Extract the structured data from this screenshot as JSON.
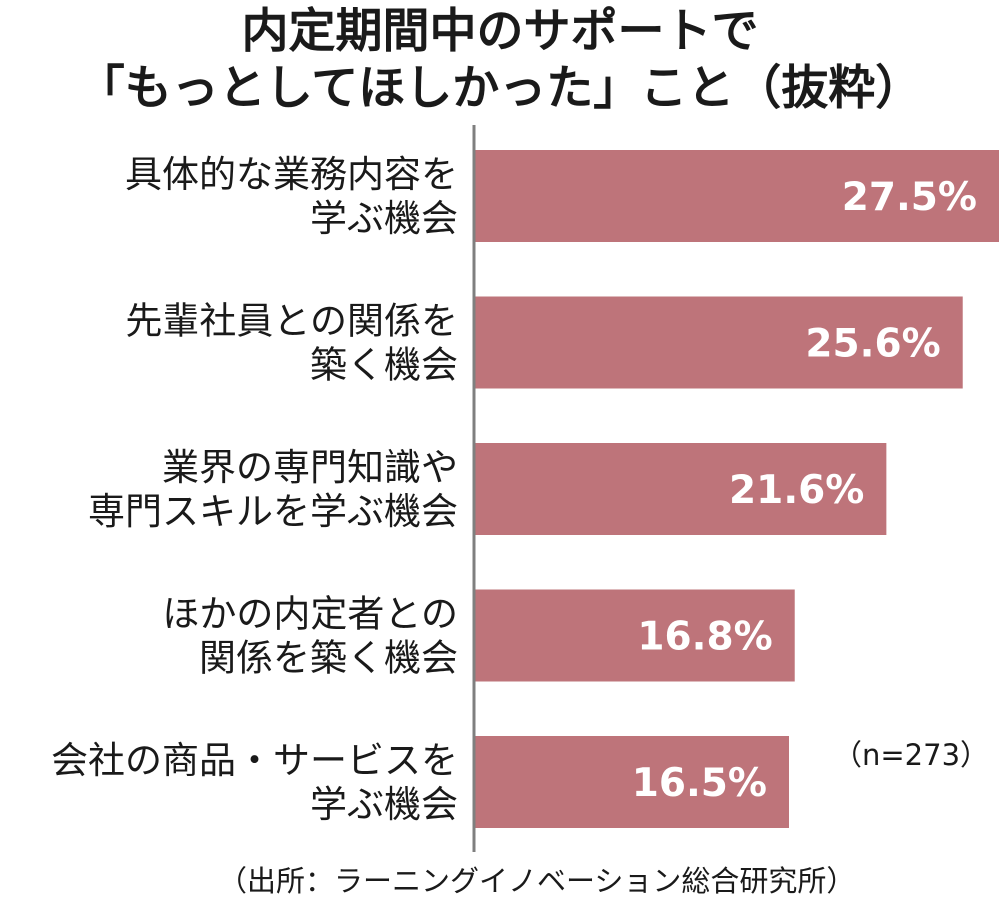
{
  "title_lines": [
    "内定期間中のサポートで",
    "「もっとしてほしかった」こと（抜粋）"
  ],
  "sample_note": "（n=273）",
  "source_note": "（出所：ラーニングイノベーション総合研究所）",
  "colors": {
    "bar": "#be747a",
    "axis": "#7f7f7f",
    "value_text": "#ffffff"
  },
  "chart_data": {
    "type": "bar",
    "orientation": "horizontal",
    "title": "内定期間中のサポートで「もっとしてほしかった」こと（抜粋）",
    "categories": [
      [
        "具体的な業務内容を",
        "学ぶ機会"
      ],
      [
        "先輩社員との関係を",
        "築く機会"
      ],
      [
        "業界の専門知識や",
        "専門スキルを学ぶ機会"
      ],
      [
        "ほかの内定者との",
        "関係を築く機会"
      ],
      [
        "会社の商品・サービスを",
        "学ぶ機会"
      ]
    ],
    "values": [
      27.5,
      25.6,
      21.6,
      16.8,
      16.5
    ],
    "value_labels": [
      "27.5%",
      "25.6%",
      "21.6%",
      "16.8%",
      "16.5%"
    ],
    "unit": "%",
    "xlim": [
      0,
      27.5
    ],
    "grid": false,
    "legend": "none"
  }
}
